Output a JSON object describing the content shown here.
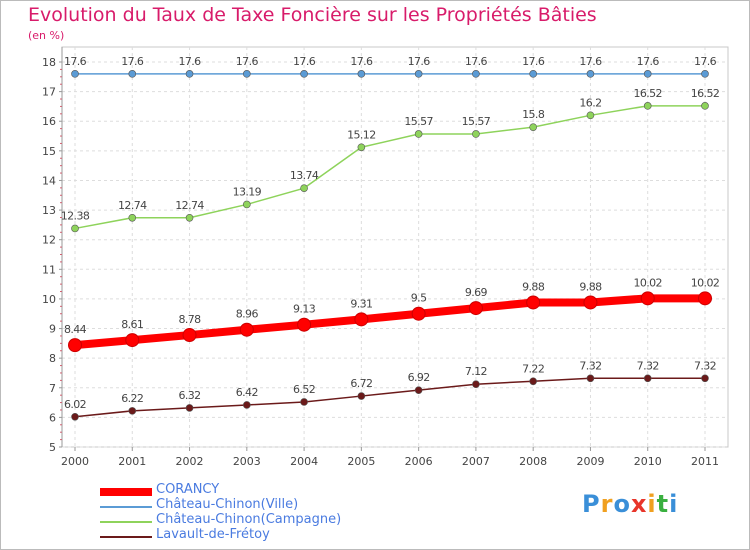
{
  "chart_data": {
    "type": "line",
    "title": "Evolution du Taux de Taxe Foncière sur les Propriétés Bâties",
    "ylabel": "(en %)",
    "xlabel": "",
    "categories": [
      "2000",
      "2001",
      "2002",
      "2003",
      "2004",
      "2005",
      "2006",
      "2007",
      "2008",
      "2009",
      "2010",
      "2011"
    ],
    "ylim": [
      5,
      18
    ],
    "yticks": [
      5,
      6,
      7,
      8,
      9,
      10,
      11,
      12,
      13,
      14,
      15,
      16,
      17,
      18
    ],
    "grid": true,
    "series": [
      {
        "name": "CORANCY",
        "color": "#ff0000",
        "values": [
          8.44,
          8.61,
          8.78,
          8.96,
          9.13,
          9.31,
          9.5,
          9.69,
          9.88,
          9.88,
          10.02,
          10.02
        ],
        "labels": [
          "8.44",
          "8.61",
          "8.78",
          "8.96",
          "9.13",
          "9.31",
          "9.5",
          "9.69",
          "9.88",
          "9.88",
          "10.02",
          "10.02"
        ]
      },
      {
        "name": "Château-Chinon(Ville)",
        "color": "#5b9bd5",
        "values": [
          17.6,
          17.6,
          17.6,
          17.6,
          17.6,
          17.6,
          17.6,
          17.6,
          17.6,
          17.6,
          17.6,
          17.6
        ],
        "labels": [
          "17.6",
          "17.6",
          "17.6",
          "17.6",
          "17.6",
          "17.6",
          "17.6",
          "17.6",
          "17.6",
          "17.6",
          "17.6",
          "17.6"
        ]
      },
      {
        "name": "Château-Chinon(Campagne)",
        "color": "#8ed35b",
        "values": [
          12.38,
          12.74,
          12.74,
          13.19,
          13.74,
          15.12,
          15.57,
          15.57,
          15.8,
          16.2,
          16.52,
          16.52
        ],
        "labels": [
          "12.38",
          "12.74",
          "12.74",
          "13.19",
          "13.74",
          "15.12",
          "15.57",
          "15.57",
          "15.8",
          "16.2",
          "16.52",
          "16.52"
        ]
      },
      {
        "name": "Lavault-de-Frétoy",
        "color": "#6b1a1a",
        "values": [
          6.02,
          6.22,
          6.32,
          6.42,
          6.52,
          6.72,
          6.92,
          7.12,
          7.22,
          7.32,
          7.32,
          7.32
        ],
        "labels": [
          "6.02",
          "6.22",
          "6.32",
          "6.42",
          "6.52",
          "6.72",
          "6.92",
          "7.12",
          "7.22",
          "7.32",
          "7.32",
          "7.32"
        ]
      }
    ],
    "legend_position": "bottom-left"
  },
  "legend": [
    {
      "label": "CORANCY",
      "color": "#ff0000"
    },
    {
      "label": "Château-Chinon(Ville)",
      "color": "#5b9bd5"
    },
    {
      "label": "Château-Chinon(Campagne)",
      "color": "#8ed35b"
    },
    {
      "label": "Lavault-de-Frétoy",
      "color": "#6b1a1a"
    }
  ],
  "logo": {
    "letters": [
      "P",
      "r",
      "o",
      "x",
      "i",
      "t",
      "i"
    ],
    "colors": [
      "#3a8fd8",
      "#f0a020",
      "#3a8fd8",
      "#e8352a",
      "#f0a020",
      "#3ab040",
      "#3a8fd8"
    ]
  }
}
